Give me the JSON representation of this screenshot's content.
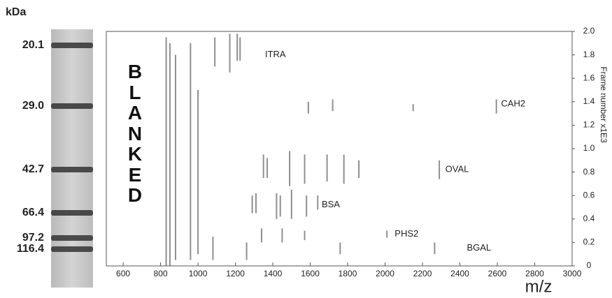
{
  "gel": {
    "unit": "kDa",
    "bands": [
      "20.1",
      "29.0",
      "42.7",
      "66.4",
      "97.2",
      "116.4"
    ]
  },
  "chart_data": {
    "type": "frame-map",
    "xlabel": "m/z",
    "ylabel": "Frame number x1E3",
    "blanked_label": "BLANKED",
    "xlim": [
      510,
      3000
    ],
    "xticks": [
      600,
      800,
      1000,
      1200,
      1400,
      1600,
      1800,
      2000,
      2200,
      2400,
      2600,
      2800,
      3000
    ],
    "ylim": [
      0,
      2.0
    ],
    "yticks": [
      0,
      0.2,
      0.4,
      0.6,
      0.8,
      {
        "value": 1.0,
        "label": "1.0"
      },
      1.2,
      1.4,
      1.6,
      1.8,
      {
        "value": 2.0,
        "label": "2.0"
      }
    ],
    "color": "#333333",
    "annotations": [
      {
        "text": "ITRA",
        "x": 1414,
        "y": 1.8
      },
      {
        "text": "CAH2",
        "x": 2685,
        "y": 1.38
      },
      {
        "text": "OVAL",
        "x": 2385,
        "y": 0.82
      },
      {
        "text": "BSA",
        "x": 1710,
        "y": 0.52
      },
      {
        "text": "PHS2",
        "x": 2115,
        "y": 0.27
      },
      {
        "text": "BGAL",
        "x": 2502,
        "y": 0.15
      }
    ],
    "streaks": [
      {
        "mz": 1090,
        "frames": [
          1.7,
          1.95
        ]
      },
      {
        "mz": 1170,
        "frames": [
          1.65,
          1.98
        ]
      },
      {
        "mz": 1210,
        "frames": [
          1.75,
          1.98
        ]
      },
      {
        "mz": 1225,
        "frames": [
          1.75,
          1.95
        ]
      },
      {
        "mz": 1590,
        "frames": [
          1.3,
          1.4
        ]
      },
      {
        "mz": 1720,
        "frames": [
          1.32,
          1.42
        ]
      },
      {
        "mz": 2595,
        "frames": [
          1.3,
          1.42
        ]
      },
      {
        "mz": 2150,
        "frames": [
          1.32,
          1.38
        ]
      },
      {
        "mz": 1350,
        "frames": [
          0.75,
          0.95
        ]
      },
      {
        "mz": 1370,
        "frames": [
          0.75,
          0.92
        ]
      },
      {
        "mz": 1490,
        "frames": [
          0.68,
          0.98
        ]
      },
      {
        "mz": 1570,
        "frames": [
          0.7,
          0.95
        ]
      },
      {
        "mz": 1690,
        "frames": [
          0.72,
          0.95
        ]
      },
      {
        "mz": 1780,
        "frames": [
          0.7,
          0.95
        ]
      },
      {
        "mz": 1860,
        "frames": [
          0.75,
          0.9
        ]
      },
      {
        "mz": 2290,
        "frames": [
          0.74,
          0.9
        ]
      },
      {
        "mz": 1290,
        "frames": [
          0.45,
          0.6
        ]
      },
      {
        "mz": 1310,
        "frames": [
          0.45,
          0.62
        ]
      },
      {
        "mz": 1420,
        "frames": [
          0.4,
          0.62
        ]
      },
      {
        "mz": 1440,
        "frames": [
          0.42,
          0.6
        ]
      },
      {
        "mz": 1500,
        "frames": [
          0.4,
          0.65
        ]
      },
      {
        "mz": 1580,
        "frames": [
          0.42,
          0.6
        ]
      },
      {
        "mz": 1640,
        "frames": [
          0.48,
          0.6
        ]
      },
      {
        "mz": 1340,
        "frames": [
          0.2,
          0.32
        ]
      },
      {
        "mz": 1450,
        "frames": [
          0.2,
          0.32
        ]
      },
      {
        "mz": 1570,
        "frames": [
          0.22,
          0.3
        ]
      },
      {
        "mz": 2010,
        "frames": [
          0.24,
          0.3
        ]
      },
      {
        "mz": 1760,
        "frames": [
          0.1,
          0.2
        ]
      },
      {
        "mz": 2265,
        "frames": [
          0.1,
          0.2
        ]
      },
      {
        "mz": 1080,
        "frames": [
          0.05,
          0.25
        ]
      },
      {
        "mz": 1260,
        "frames": [
          0.05,
          0.2
        ]
      },
      {
        "mz": 960,
        "frames": [
          0.05,
          1.9
        ]
      },
      {
        "mz": 1000,
        "frames": [
          0.1,
          1.5
        ]
      },
      {
        "mz": 830,
        "frames": [
          0.0,
          1.95
        ]
      },
      {
        "mz": 850,
        "frames": [
          0.0,
          1.9
        ]
      },
      {
        "mz": 880,
        "frames": [
          0.05,
          1.8
        ]
      }
    ]
  }
}
